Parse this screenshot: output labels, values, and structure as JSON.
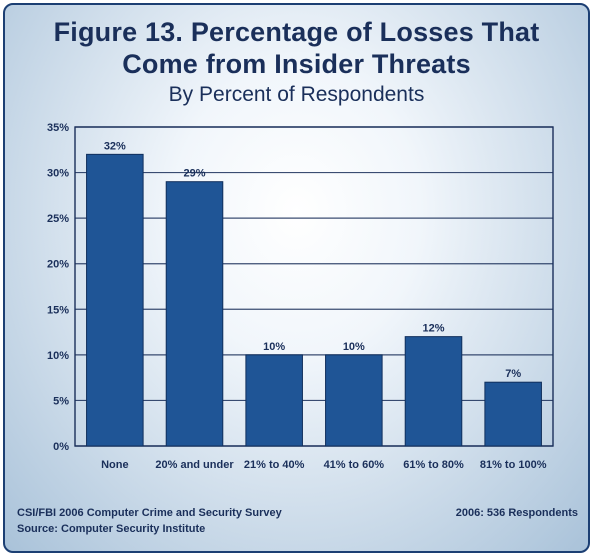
{
  "header": {
    "title_line1": "Figure 13. Percentage of Losses That",
    "title_line2": "Come from Insider Threats",
    "subtitle": "By Percent of Respondents"
  },
  "footer": {
    "source_line1": "CSI/FBI 2006 Computer Crime and Security Survey",
    "source_line2": "Source: Computer Security Institute",
    "respondents": "2006: 536 Respondents"
  },
  "colors": {
    "bar": "#1f5596",
    "bar_edge": "#102f5c",
    "text": "#1a2f5a",
    "grid": "#1a2f5a"
  },
  "chart_data": {
    "type": "bar",
    "categories": [
      "None",
      "20% and under",
      "21% to 40%",
      "41% to 60%",
      "61% to 80%",
      "81% to 100%"
    ],
    "values": [
      32,
      29,
      10,
      10,
      12,
      7
    ],
    "data_labels": [
      "32%",
      "29%",
      "10%",
      "10%",
      "12%",
      "7%"
    ],
    "yticks": [
      0,
      5,
      10,
      15,
      20,
      25,
      30,
      35
    ],
    "ytick_labels": [
      "0%",
      "5%",
      "10%",
      "15%",
      "20%",
      "25%",
      "30%",
      "35%"
    ],
    "ylim": [
      0,
      35
    ],
    "grid": true,
    "xlabel": "",
    "ylabel": ""
  }
}
